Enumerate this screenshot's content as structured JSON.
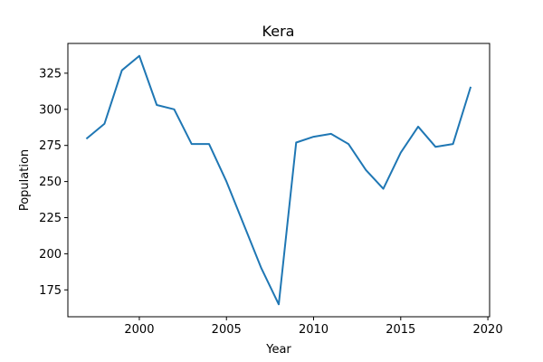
{
  "chart_data": {
    "type": "line",
    "title": "Kera",
    "xlabel": "Year",
    "ylabel": "Population",
    "xlim": [
      1995.9,
      2020.1
    ],
    "ylim": [
      156.4,
      345.6
    ],
    "xticks": [
      2000,
      2005,
      2010,
      2015,
      2020
    ],
    "yticks": [
      175,
      200,
      225,
      250,
      275,
      300,
      325
    ],
    "grid": false,
    "line_color": "#1f77b4",
    "series": [
      {
        "x": [
          1997,
          1998,
          1999,
          2000,
          2001,
          2002,
          2003,
          2004,
          2005,
          2006,
          2007,
          2008,
          2009,
          2010,
          2011,
          2012,
          2013,
          2014,
          2015,
          2016,
          2017,
          2018,
          2019
        ],
        "values": [
          280,
          290,
          327,
          337,
          303,
          300,
          276,
          276,
          250,
          220,
          190,
          165,
          277,
          281,
          283,
          276,
          258,
          245,
          270,
          288,
          274,
          276,
          315
        ]
      }
    ]
  }
}
